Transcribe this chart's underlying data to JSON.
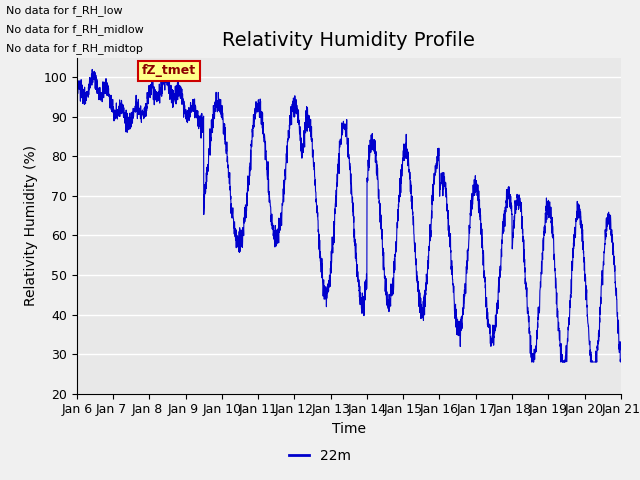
{
  "title": "Relativity Humidity Profile",
  "xlabel": "Time",
  "ylabel": "Relativity Humidity (%)",
  "legend_label": "22m",
  "no_data_texts": [
    "No data for f_RH_low",
    "No data for f_RH_midlow",
    "No data for f_RH_midtop"
  ],
  "fz_tmet_label": "fZ_tmet",
  "ylim": [
    20,
    105
  ],
  "yticks": [
    20,
    30,
    40,
    50,
    60,
    70,
    80,
    90,
    100
  ],
  "xtick_labels": [
    "Jan 6",
    "Jan 7 ",
    "Jan 8 ",
    "Jan 9 ",
    "Jan 10",
    "Jan 11",
    "Jan 12",
    "Jan 13",
    "Jan 14",
    "Jan 15",
    "Jan 16",
    "Jan 17",
    "Jan 18",
    "Jan 19",
    "Jan 20",
    "Jan 21"
  ],
  "line_color": "#0000cc",
  "fig_bg": "#f0f0f0",
  "plot_bg": "#e8e8e8",
  "grid_color": "#ffffff",
  "title_fontsize": 14,
  "axis_label_fontsize": 10,
  "tick_fontsize": 9,
  "legend_fontsize": 10
}
